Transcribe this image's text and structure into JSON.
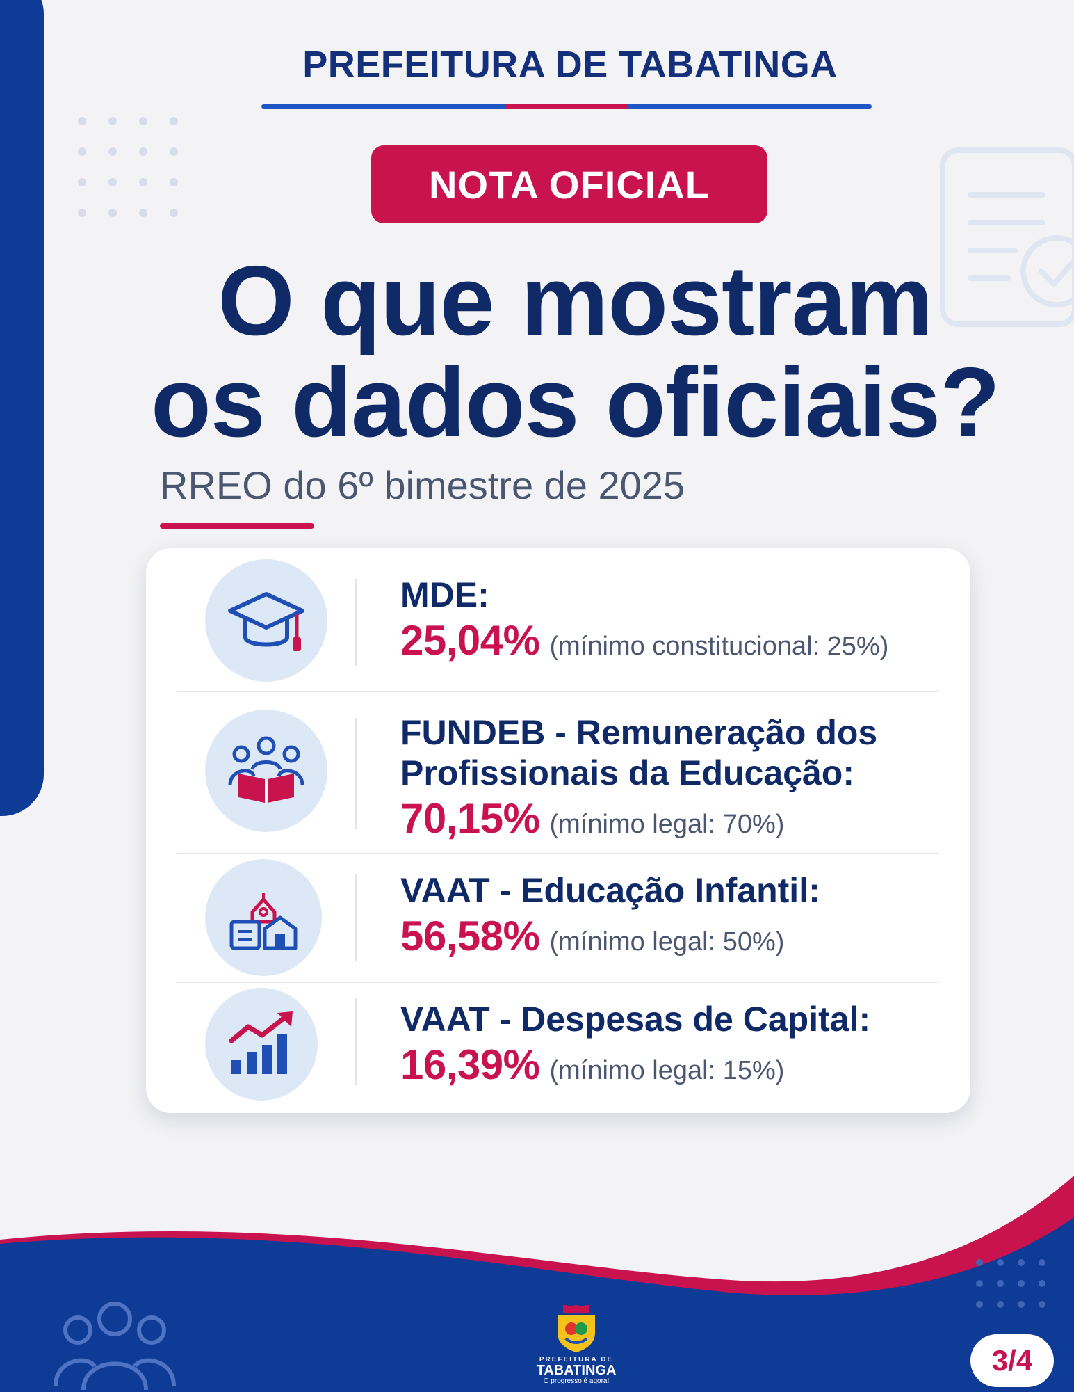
{
  "header": {
    "org_title": "PREFEITURA DE TABATINGA",
    "badge": "NOTA OFICIAL"
  },
  "headline": {
    "line1": "O que mostram",
    "line2": "os dados oficiais?"
  },
  "subtitle": "RREO do 6º bimestre de 2025",
  "items": [
    {
      "label_line1": "MDE:",
      "label_line2": "",
      "value": "25,04%",
      "note": "(mínimo constitucional: 25%)",
      "icon": "graduation-cap-icon"
    },
    {
      "label_line1": "FUNDEB - Remuneração dos",
      "label_line2": "Profissionais da Educação:",
      "value": "70,15%",
      "note": "(mínimo legal: 70%)",
      "icon": "people-reading-icon"
    },
    {
      "label_line1": "VAAT - Educação Infantil:",
      "label_line2": "",
      "value": "56,58%",
      "note": "(mínimo legal: 50%)",
      "icon": "school-building-icon"
    },
    {
      "label_line1": "VAAT - Despesas de Capital:",
      "label_line2": "",
      "value": "16,39%",
      "note": "(mínimo legal: 15%)",
      "icon": "growth-chart-icon"
    }
  ],
  "footer": {
    "logo_top": "PREFEITURA DE",
    "logo_name": "TABATINGA",
    "logo_tagline": "O progresso é agora!",
    "page_counter": "3/4"
  },
  "colors": {
    "navy": "#0f2a66",
    "brand_blue": "#0d3b96",
    "accent_magenta": "#c8134f",
    "background": "#f3f3f5",
    "icon_circle": "#dde8f6"
  }
}
